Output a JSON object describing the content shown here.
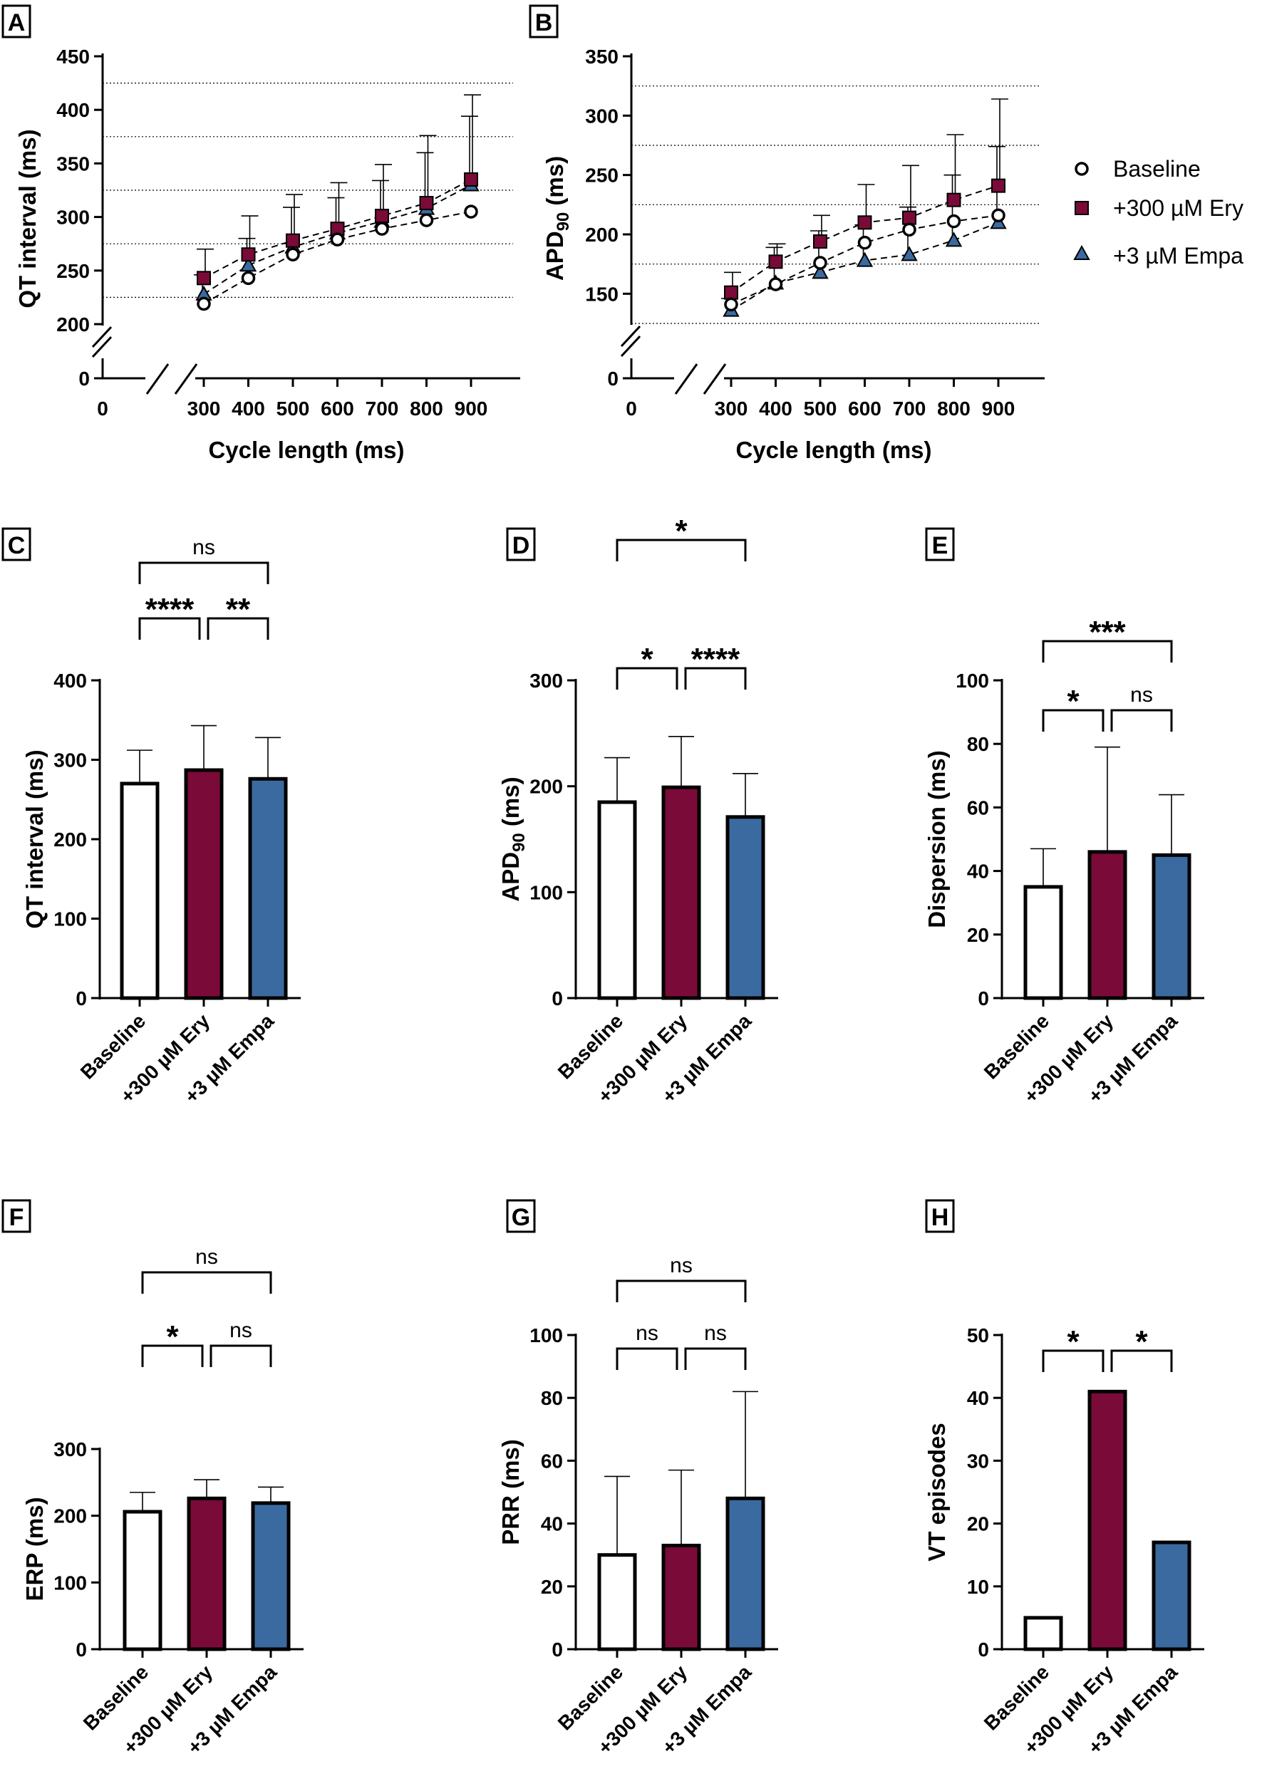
{
  "colors": {
    "baseline": "#ffffff",
    "ery": "#7a0a38",
    "empa": "#3b6aa0",
    "axis": "#000000"
  },
  "legend": {
    "baseline": "Baseline",
    "ery": "+300 µM Ery",
    "empa": "+3 µM Empa"
  },
  "panels": {
    "A": "A",
    "B": "B",
    "C": "C",
    "D": "D",
    "E": "E",
    "F": "F",
    "G": "G",
    "H": "H"
  },
  "chart_data": [
    {
      "id": "A",
      "type": "line",
      "xlabel": "Cycle length (ms)",
      "ylabel": "QT interval (ms)",
      "x": [
        300,
        400,
        500,
        600,
        700,
        800,
        900
      ],
      "xticks": [
        "300",
        "400",
        "500",
        "600",
        "700",
        "800",
        "900"
      ],
      "x_origin_label": "0",
      "yticks": [
        0,
        200,
        250,
        300,
        350,
        400,
        450
      ],
      "ylim": [
        200,
        450
      ],
      "axis_break": true,
      "grid_y": [
        225,
        275,
        325,
        375,
        425
      ],
      "series": [
        {
          "name": "Baseline",
          "values": [
            219,
            243,
            265,
            279,
            289,
            297,
            305
          ],
          "err": [
            0,
            0,
            0,
            0,
            0,
            0,
            0
          ]
        },
        {
          "name": "+300 µM Ery",
          "values": [
            243,
            265,
            278,
            289,
            301,
            313,
            335
          ],
          "err": [
            27,
            36,
            43,
            43,
            48,
            63,
            79
          ]
        },
        {
          "name": "+3 µM Empa",
          "values": [
            228,
            255,
            272,
            285,
            296,
            308,
            330
          ],
          "err": [
            18,
            25,
            37,
            33,
            38,
            52,
            64
          ]
        }
      ]
    },
    {
      "id": "B",
      "type": "line",
      "xlabel": "Cycle length (ms)",
      "ylabel": "APD",
      "ylabel_sub": "90",
      "ylabel_suffix": " (ms)",
      "x": [
        300,
        400,
        500,
        600,
        700,
        800,
        900
      ],
      "xticks": [
        "300",
        "400",
        "500",
        "600",
        "700",
        "800",
        "900"
      ],
      "x_origin_label": "0",
      "yticks": [
        0,
        150,
        200,
        250,
        300,
        350
      ],
      "ylim": [
        125,
        350
      ],
      "axis_break": true,
      "grid_y": [
        125,
        175,
        225,
        275,
        325
      ],
      "series": [
        {
          "name": "Baseline",
          "values": [
            141,
            158,
            176,
            193,
            204,
            211,
            216
          ],
          "err": [
            0,
            0,
            0,
            0,
            0,
            0,
            0
          ]
        },
        {
          "name": "+300 µM Ery",
          "values": [
            151,
            177,
            194,
            210,
            214,
            229,
            241
          ],
          "err": [
            17,
            15,
            22,
            32,
            44,
            55,
            73
          ]
        },
        {
          "name": "+3 µM Empa",
          "values": [
            136,
            159,
            168,
            178,
            183,
            195,
            210
          ],
          "err": [
            10,
            30,
            35,
            30,
            40,
            55,
            64
          ]
        }
      ]
    },
    {
      "id": "C",
      "type": "bar",
      "ylabel": "QT interval (ms)",
      "categories": [
        "Baseline",
        "+300 µM Ery",
        "+3 µM Empa"
      ],
      "values": [
        270,
        287,
        276
      ],
      "err": [
        42,
        56,
        52
      ],
      "ylim": [
        0,
        400
      ],
      "yticks": [
        0,
        100,
        200,
        300,
        400
      ],
      "significance": [
        {
          "from": 0,
          "to": 1,
          "label": "****"
        },
        {
          "from": 1,
          "to": 2,
          "label": "**"
        },
        {
          "from": 0,
          "to": 2,
          "label": "ns"
        }
      ]
    },
    {
      "id": "D",
      "type": "bar",
      "ylabel": "APD",
      "ylabel_sub": "90",
      "ylabel_suffix": " (ms)",
      "categories": [
        "Baseline",
        "+300 µM Ery",
        "+3 µM Empa"
      ],
      "values": [
        185,
        199,
        171
      ],
      "err": [
        42,
        48,
        41
      ],
      "ylim": [
        0,
        300
      ],
      "yticks": [
        0,
        100,
        200,
        300
      ],
      "significance": [
        {
          "from": 0,
          "to": 1,
          "label": "*"
        },
        {
          "from": 1,
          "to": 2,
          "label": "****"
        },
        {
          "from": 0,
          "to": 2,
          "label": "*"
        }
      ]
    },
    {
      "id": "E",
      "type": "bar",
      "ylabel": "Dispersion (ms)",
      "categories": [
        "Baseline",
        "+300 µM Ery",
        "+3 µM Empa"
      ],
      "values": [
        35,
        46,
        45
      ],
      "err": [
        12,
        33,
        19
      ],
      "ylim": [
        0,
        100
      ],
      "yticks": [
        0,
        20,
        40,
        60,
        80,
        100
      ],
      "significance": [
        {
          "from": 0,
          "to": 1,
          "label": "*"
        },
        {
          "from": 1,
          "to": 2,
          "label": "ns"
        },
        {
          "from": 0,
          "to": 2,
          "label": "***"
        }
      ]
    },
    {
      "id": "F",
      "type": "bar",
      "ylabel": "ERP (ms)",
      "categories": [
        "Baseline",
        "+300 µM Ery",
        "+3 µM Empa"
      ],
      "values": [
        206,
        226,
        219
      ],
      "err": [
        29,
        28,
        24
      ],
      "ylim": [
        0,
        300
      ],
      "yticks": [
        0,
        100,
        200,
        300
      ],
      "significance": [
        {
          "from": 0,
          "to": 1,
          "label": "*"
        },
        {
          "from": 1,
          "to": 2,
          "label": "ns"
        },
        {
          "from": 0,
          "to": 2,
          "label": "ns"
        }
      ]
    },
    {
      "id": "G",
      "type": "bar",
      "ylabel": "PRR (ms)",
      "categories": [
        "Baseline",
        "+300 µM Ery",
        "+3 µM Empa"
      ],
      "values": [
        30,
        33,
        48
      ],
      "err": [
        25,
        24,
        34
      ],
      "ylim": [
        0,
        100
      ],
      "yticks": [
        0,
        20,
        40,
        60,
        80,
        100
      ],
      "significance": [
        {
          "from": 0,
          "to": 1,
          "label": "ns"
        },
        {
          "from": 1,
          "to": 2,
          "label": "ns"
        },
        {
          "from": 0,
          "to": 2,
          "label": "ns"
        }
      ]
    },
    {
      "id": "H",
      "type": "bar",
      "ylabel": "VT episodes",
      "categories": [
        "Baseline",
        "+300 µM Ery",
        "+3 µM Empa"
      ],
      "values": [
        5,
        41,
        17
      ],
      "err": [
        0,
        0,
        0
      ],
      "ylim": [
        0,
        50
      ],
      "yticks": [
        0,
        10,
        20,
        30,
        40,
        50
      ],
      "significance": [
        {
          "from": 0,
          "to": 1,
          "label": "*"
        },
        {
          "from": 1,
          "to": 2,
          "label": "*"
        }
      ]
    }
  ]
}
